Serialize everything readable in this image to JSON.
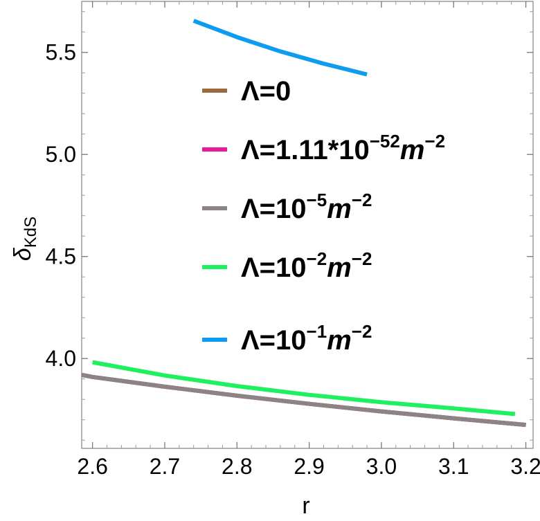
{
  "chart_data": {
    "type": "line",
    "xlabel": "r",
    "ylabel": "δ",
    "ylabel_sub": "KdS",
    "xlim": [
      2.585,
      3.21
    ],
    "ylim": [
      3.56,
      5.75
    ],
    "x_ticks": [
      "2.6",
      "2.7",
      "2.8",
      "2.9",
      "3.0",
      "3.1",
      "3.2"
    ],
    "x_tick_values": [
      2.6,
      2.7,
      2.8,
      2.9,
      3.0,
      3.1,
      3.2
    ],
    "y_ticks": [
      "4.0",
      "4.5",
      "5.0",
      "5.5"
    ],
    "y_tick_values": [
      4.0,
      4.5,
      5.0,
      5.5
    ],
    "legend_position": "center",
    "series": [
      {
        "name": "Λ=0",
        "legend": {
          "base": "Λ=0"
        },
        "color": "#9b6a3c",
        "x": [
          2.585,
          2.6,
          2.7,
          2.8,
          2.9,
          3.0,
          3.1,
          3.2
        ],
        "y": [
          3.92,
          3.91,
          3.862,
          3.818,
          3.778,
          3.741,
          3.707,
          3.675
        ]
      },
      {
        "name": "Λ=1.11*10^-52 m^-2",
        "legend": {
          "base": "Λ=1.11*10",
          "exp1": "−52",
          "unit": "m",
          "exp2": "−2"
        },
        "color": "#e8189c",
        "x": [
          2.585,
          2.6,
          2.7,
          2.8,
          2.9,
          3.0,
          3.1,
          3.2
        ],
        "y": [
          3.92,
          3.91,
          3.862,
          3.818,
          3.778,
          3.741,
          3.707,
          3.675
        ]
      },
      {
        "name": "Λ=10^-5 m^-2",
        "legend": {
          "base": "Λ=10",
          "exp1": "−5",
          "unit": "m",
          "exp2": "−2"
        },
        "color": "#8c8484",
        "x": [
          2.585,
          2.6,
          2.7,
          2.8,
          2.9,
          3.0,
          3.1,
          3.2
        ],
        "y": [
          3.92,
          3.91,
          3.862,
          3.818,
          3.778,
          3.741,
          3.707,
          3.675
        ]
      },
      {
        "name": "Λ=10^-2 m^-2",
        "legend": {
          "base": "Λ=10",
          "exp1": "−2",
          "unit": "m",
          "exp2": "−2"
        },
        "color": "#1ef060",
        "x": [
          2.6,
          2.7,
          2.8,
          2.9,
          3.0,
          3.1,
          3.185
        ],
        "y": [
          3.982,
          3.917,
          3.865,
          3.822,
          3.786,
          3.756,
          3.728
        ]
      },
      {
        "name": "Λ=10^-1 m^-2",
        "legend": {
          "base": "Λ=10",
          "exp1": "−1",
          "unit": "m",
          "exp2": "−2"
        },
        "color": "#0e9cf0",
        "x": [
          2.74,
          2.8,
          2.86,
          2.92,
          2.98
        ],
        "y": [
          5.655,
          5.575,
          5.505,
          5.445,
          5.392
        ]
      }
    ]
  }
}
